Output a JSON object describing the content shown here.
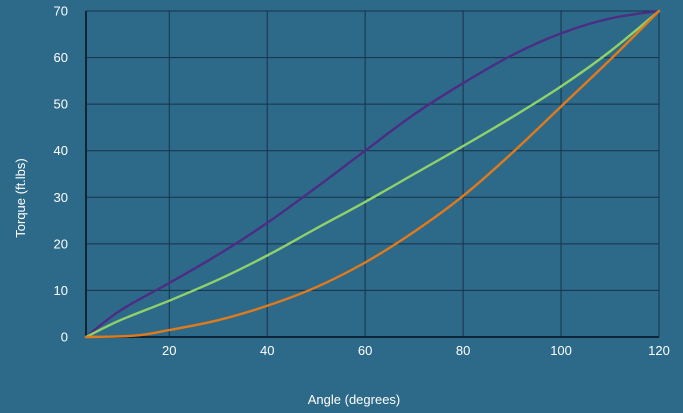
{
  "chart_data": {
    "type": "line",
    "xlabel": "Angle (degrees)",
    "ylabel": "Torque (ft.lbs)",
    "xlim": [
      3,
      120
    ],
    "ylim": [
      0,
      70
    ],
    "x_ticks": [
      20,
      40,
      60,
      80,
      100,
      120
    ],
    "y_ticks": [
      0,
      10,
      20,
      30,
      40,
      50,
      60,
      70
    ],
    "grid": true,
    "series": [
      {
        "color": "#4b2d83",
        "x": [
          3,
          10,
          20,
          30,
          40,
          50,
          60,
          70,
          80,
          90,
          100,
          110,
          120
        ],
        "y": [
          0,
          5.7,
          11.6,
          17.7,
          24.5,
          32.1,
          40,
          47.8,
          54.5,
          60.5,
          65.2,
          68.4,
          70
        ]
      },
      {
        "color": "#8fd16a",
        "x": [
          3,
          10,
          20,
          30,
          40,
          50,
          60,
          70,
          80,
          90,
          100,
          110,
          120
        ],
        "y": [
          0,
          3.6,
          7.8,
          12.3,
          17.5,
          23.3,
          29,
          35,
          41,
          47.2,
          53.8,
          61.3,
          70
        ]
      },
      {
        "color": "#e07a1c",
        "x": [
          3,
          13,
          20,
          30,
          40,
          50,
          60,
          70,
          80,
          90,
          100,
          110,
          120
        ],
        "y": [
          0,
          0.3,
          1.5,
          3.6,
          6.7,
          10.7,
          16,
          22.6,
          30.3,
          39.5,
          49.5,
          59.5,
          70
        ]
      }
    ]
  }
}
